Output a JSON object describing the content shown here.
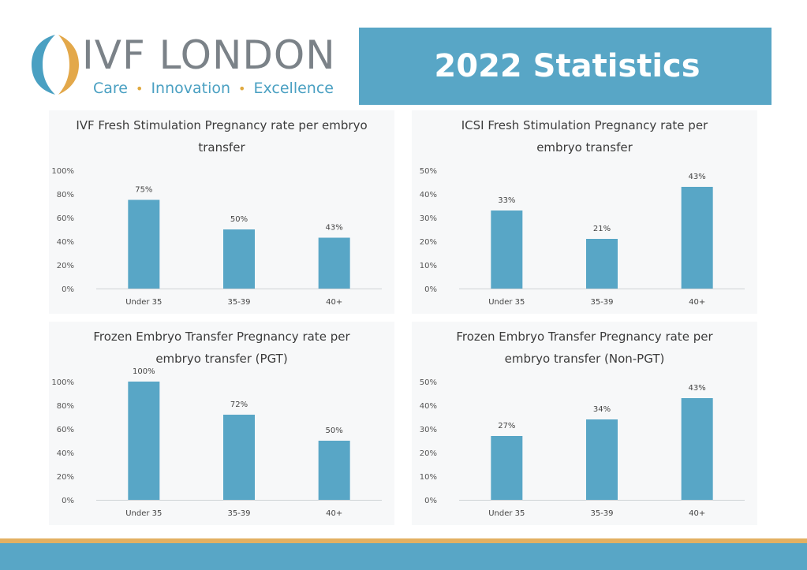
{
  "header": {
    "logo_text": "IVF LONDON",
    "tagline": [
      "Care",
      "Innovation",
      "Excellence"
    ],
    "banner_title": "2022 Statistics"
  },
  "colors": {
    "bar": "#58a6c6",
    "banner": "#58a6c6",
    "logo_gold": "#e3a84a",
    "logo_blue": "#4aa0c2",
    "logo_text": "#7b8288",
    "footer_gold": "#e3b061"
  },
  "chart_data": [
    {
      "type": "bar",
      "title": "IVF Fresh Stimulation Pregnancy rate per embryo transfer",
      "title_lines": [
        "IVF Fresh Stimulation Pregnancy rate per embryo",
        "transfer"
      ],
      "categories": [
        "Under 35",
        "35-39",
        "40+"
      ],
      "values": [
        75,
        50,
        43
      ],
      "data_labels": [
        "75%",
        "50%",
        "43%"
      ],
      "yticks": [
        "0%",
        "20%",
        "40%",
        "60%",
        "80%",
        "100%"
      ],
      "ylim": [
        0,
        100
      ],
      "grid": false,
      "legend": "none"
    },
    {
      "type": "bar",
      "title": "ICSI Fresh Stimulation Pregnancy rate per embryo transfer",
      "title_lines": [
        "ICSI Fresh Stimulation Pregnancy rate per",
        "embryo transfer"
      ],
      "categories": [
        "Under 35",
        "35-39",
        "40+"
      ],
      "values": [
        33,
        21,
        43
      ],
      "data_labels": [
        "33%",
        "21%",
        "43%"
      ],
      "yticks": [
        "0%",
        "10%",
        "20%",
        "30%",
        "40%",
        "50%"
      ],
      "ylim": [
        0,
        50
      ],
      "grid": false,
      "legend": "none"
    },
    {
      "type": "bar",
      "title": "Frozen Embryo Transfer Pregnancy rate per embryo transfer (PGT)",
      "title_lines": [
        "Frozen Embryo Transfer Pregnancy rate per",
        "embryo transfer (PGT)"
      ],
      "categories": [
        "Under 35",
        "35-39",
        "40+"
      ],
      "values": [
        100,
        72,
        50
      ],
      "data_labels": [
        "100%",
        "72%",
        "50%"
      ],
      "yticks": [
        "0%",
        "20%",
        "40%",
        "60%",
        "80%",
        "100%"
      ],
      "ylim": [
        0,
        100
      ],
      "grid": false,
      "legend": "none"
    },
    {
      "type": "bar",
      "title": "Frozen Embryo Transfer Pregnancy rate per embryo transfer (Non-PGT)",
      "title_lines": [
        "Frozen Embryo Transfer Pregnancy rate per",
        "embryo transfer (Non-PGT)"
      ],
      "categories": [
        "Under 35",
        "35-39",
        "40+"
      ],
      "values": [
        27,
        34,
        43
      ],
      "data_labels": [
        "27%",
        "34%",
        "43%"
      ],
      "yticks": [
        "0%",
        "10%",
        "20%",
        "30%",
        "40%",
        "50%"
      ],
      "ylim": [
        0,
        50
      ],
      "grid": false,
      "legend": "none"
    }
  ]
}
